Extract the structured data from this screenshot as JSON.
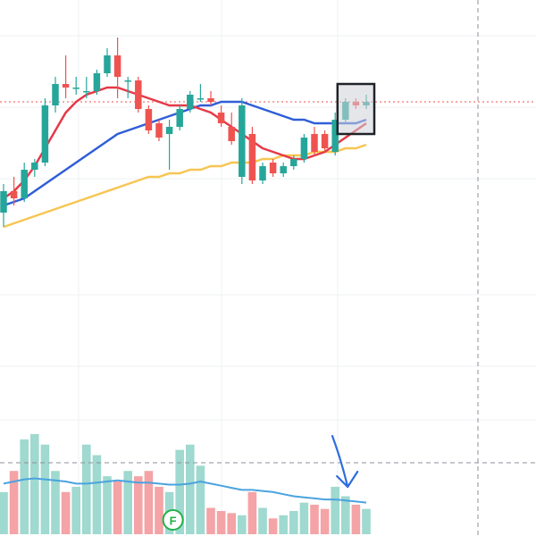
{
  "chart_data": {
    "type": "candlestick",
    "title": "",
    "xlabel": "",
    "ylabel": "",
    "grid": true,
    "colors": {
      "up": "#26a69a",
      "down": "#ef5350",
      "up_volume": "#9fd9cf",
      "down_volume": "#f4a3a6",
      "ma_fast": "#e53948",
      "ma_mid": "#2f5ed8",
      "ma_slow": "#f7c552",
      "volume_ma": "#4aa3df",
      "price_line": "#ef5350",
      "highlight": "#cfd2d9",
      "arrow": "#2f6de0",
      "marker": "#22b14c",
      "grid": "#eef0f3",
      "crosshair": "#8c8f99"
    },
    "ylim": [
      30,
      130
    ],
    "candles": [
      {
        "o": 78,
        "h": 86,
        "l": 74,
        "c": 84
      },
      {
        "o": 84,
        "h": 88,
        "l": 80,
        "c": 82
      },
      {
        "o": 82,
        "h": 92,
        "l": 81,
        "c": 90
      },
      {
        "o": 90,
        "h": 93,
        "l": 88,
        "c": 92
      },
      {
        "o": 92,
        "h": 110,
        "l": 91,
        "c": 108
      },
      {
        "o": 108,
        "h": 116,
        "l": 106,
        "c": 114
      },
      {
        "o": 114,
        "h": 122,
        "l": 110,
        "c": 113
      },
      {
        "o": 113,
        "h": 116,
        "l": 111,
        "c": 113
      },
      {
        "o": 112,
        "h": 116,
        "l": 110,
        "c": 112
      },
      {
        "o": 112,
        "h": 118,
        "l": 111,
        "c": 117
      },
      {
        "o": 117,
        "h": 124,
        "l": 116,
        "c": 122
      },
      {
        "o": 122,
        "h": 127,
        "l": 110,
        "c": 116
      },
      {
        "o": 115,
        "h": 116,
        "l": 110,
        "c": 115
      },
      {
        "o": 115,
        "h": 116,
        "l": 106,
        "c": 107
      },
      {
        "o": 107,
        "h": 108,
        "l": 100,
        "c": 101
      },
      {
        "o": 103,
        "h": 104,
        "l": 98,
        "c": 99
      },
      {
        "o": 100,
        "h": 104,
        "l": 90,
        "c": 102
      },
      {
        "o": 102,
        "h": 108,
        "l": 101,
        "c": 107
      },
      {
        "o": 107,
        "h": 112,
        "l": 106,
        "c": 111
      },
      {
        "o": 110,
        "h": 114,
        "l": 109,
        "c": 110
      },
      {
        "o": 110,
        "h": 112,
        "l": 108,
        "c": 109
      },
      {
        "o": 106,
        "h": 108,
        "l": 102,
        "c": 103
      },
      {
        "o": 102,
        "h": 106,
        "l": 97,
        "c": 98
      },
      {
        "o": 88,
        "h": 110,
        "l": 86,
        "c": 108
      },
      {
        "o": 100,
        "h": 102,
        "l": 86,
        "c": 87
      },
      {
        "o": 87,
        "h": 92,
        "l": 86,
        "c": 91
      },
      {
        "o": 92,
        "h": 93,
        "l": 88,
        "c": 89
      },
      {
        "o": 89,
        "h": 92,
        "l": 88,
        "c": 91
      },
      {
        "o": 91,
        "h": 94,
        "l": 90,
        "c": 93
      },
      {
        "o": 93,
        "h": 100,
        "l": 92,
        "c": 99
      },
      {
        "o": 100,
        "h": 102,
        "l": 94,
        "c": 95
      },
      {
        "o": 100,
        "h": 101,
        "l": 95,
        "c": 96
      },
      {
        "o": 95,
        "h": 106,
        "l": 94,
        "c": 104
      },
      {
        "o": 104,
        "h": 110,
        "l": 103,
        "c": 109
      },
      {
        "o": 109,
        "h": 110,
        "l": 107,
        "c": 108
      },
      {
        "o": 108,
        "h": 111,
        "l": 107,
        "c": 109
      }
    ],
    "ma_fast": [
      82,
      84,
      87,
      91,
      96,
      101,
      106,
      109,
      111,
      112,
      113,
      113,
      112,
      111,
      110,
      109,
      108,
      108,
      108,
      107,
      106,
      104,
      102,
      100,
      98,
      96,
      95,
      94,
      93,
      93,
      94,
      95,
      97,
      99,
      101,
      103
    ],
    "ma_mid": [
      80,
      81,
      82,
      84,
      86,
      88,
      90,
      92,
      94,
      96,
      98,
      100,
      101,
      102,
      103,
      104,
      105,
      106,
      107,
      108,
      108,
      109,
      109,
      109,
      108,
      107,
      106,
      105,
      104,
      104,
      103,
      103,
      103,
      103,
      103,
      104
    ],
    "ma_slow": [
      74,
      75,
      76,
      77,
      78,
      79,
      80,
      81,
      82,
      83,
      84,
      85,
      86,
      87,
      88,
      88,
      89,
      89,
      90,
      90,
      91,
      91,
      92,
      92,
      92,
      93,
      93,
      94,
      94,
      94,
      95,
      95,
      95,
      96,
      96,
      97
    ],
    "volume": [
      40,
      60,
      90,
      95,
      85,
      60,
      40,
      45,
      85,
      75,
      55,
      50,
      60,
      55,
      60,
      45,
      40,
      80,
      85,
      65,
      25,
      22,
      20,
      18,
      40,
      25,
      15,
      18,
      22,
      30,
      28,
      24,
      45,
      36,
      28,
      24
    ],
    "volume_ma": [
      48,
      50,
      52,
      53,
      52,
      51,
      50,
      48,
      48,
      49,
      50,
      51,
      50,
      49,
      49,
      48,
      47,
      47,
      48,
      50,
      48,
      46,
      44,
      42,
      42,
      41,
      40,
      38,
      36,
      35,
      34,
      33,
      33,
      32,
      31,
      30
    ],
    "volume_ylim": [
      0,
      100
    ],
    "last_price": 109,
    "highlight_candles": [
      33,
      35
    ],
    "volume_marker": {
      "index": 16,
      "label": "F"
    },
    "arrow_target_index": 32
  }
}
